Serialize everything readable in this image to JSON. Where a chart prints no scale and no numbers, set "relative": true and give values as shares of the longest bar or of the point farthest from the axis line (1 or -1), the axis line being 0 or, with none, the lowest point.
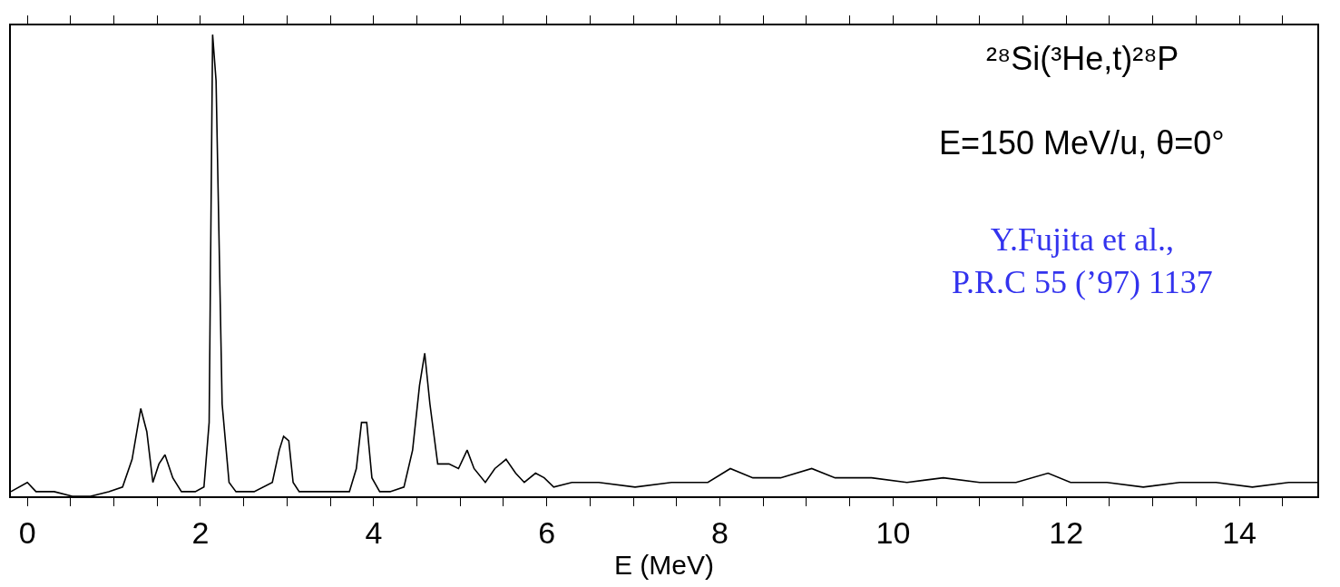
{
  "chart_data": {
    "type": "line",
    "relative": true,
    "xlabel": "E (MeV)",
    "annotations": [
      "²⁸Si(³He,t)²⁸P",
      "E=150 MeV/u, θ=0°",
      "Y.Fujita et al.,\nP.R.C 55 (’97) 1137"
    ],
    "xlim": [
      -0.19,
      14.9
    ],
    "xticks": [
      0,
      {
        "value": 0.5,
        "label": null
      },
      {
        "value": 1,
        "label": null
      },
      {
        "value": 1.5,
        "label": null
      },
      2,
      {
        "value": 2.5,
        "label": null
      },
      {
        "value": 3,
        "label": null
      },
      {
        "value": 3.5,
        "label": null
      },
      4,
      {
        "value": 4.5,
        "label": null
      },
      {
        "value": 5,
        "label": null
      },
      {
        "value": 5.5,
        "label": null
      },
      6,
      {
        "value": 6.5,
        "label": null
      },
      {
        "value": 7,
        "label": null
      },
      {
        "value": 7.5,
        "label": null
      },
      8,
      {
        "value": 8.5,
        "label": null
      },
      {
        "value": 9,
        "label": null
      },
      {
        "value": 9.5,
        "label": null
      },
      10,
      {
        "value": 10.5,
        "label": null
      },
      {
        "value": 11,
        "label": null
      },
      {
        "value": 11.5,
        "label": null
      },
      12,
      {
        "value": 12.5,
        "label": null
      },
      {
        "value": 13,
        "label": null
      },
      {
        "value": 13.5,
        "label": null
      },
      14,
      {
        "value": 14.5,
        "label": null
      }
    ],
    "marker": "none",
    "line_style": "solid",
    "series": [
      {
        "color": "#000000",
        "x": [
          -0.19,
          0,
          0.1,
          0.31,
          0.52,
          0.73,
          0.94,
          1.1,
          1.21,
          1.31,
          1.38,
          1.45,
          1.52,
          1.59,
          1.68,
          1.78,
          1.94,
          2.04,
          2.1,
          2.14,
          2.18,
          2.25,
          2.33,
          2.41,
          2.62,
          2.83,
          2.91,
          2.96,
          3.02,
          3.07,
          3.14,
          3.35,
          3.56,
          3.72,
          3.8,
          3.86,
          3.92,
          3.98,
          4.07,
          4.19,
          4.35,
          4.45,
          4.53,
          4.59,
          4.65,
          4.74,
          4.87,
          4.98,
          5.08,
          5.16,
          5.29,
          5.4,
          5.53,
          5.64,
          5.74,
          5.87,
          5.97,
          6.08,
          6.29,
          6.6,
          7.02,
          7.44,
          7.86,
          8.12,
          8.38,
          8.7,
          9.06,
          9.33,
          9.75,
          10.16,
          10.58,
          11.0,
          11.42,
          11.79,
          12.05,
          12.47,
          12.89,
          13.31,
          13.73,
          14.15,
          14.57,
          14.9
        ],
        "values": [
          0.01,
          0.03,
          0.01,
          0.01,
          0.0,
          0.0,
          0.01,
          0.02,
          0.08,
          0.19,
          0.14,
          0.03,
          0.07,
          0.09,
          0.04,
          0.01,
          0.01,
          0.02,
          0.16,
          1,
          0.9,
          0.2,
          0.03,
          0.01,
          0.01,
          0.03,
          0.1,
          0.13,
          0.12,
          0.03,
          0.01,
          0.01,
          0.01,
          0.01,
          0.06,
          0.16,
          0.16,
          0.04,
          0.01,
          0.01,
          0.02,
          0.1,
          0.24,
          0.31,
          0.2,
          0.07,
          0.07,
          0.06,
          0.1,
          0.06,
          0.03,
          0.06,
          0.08,
          0.05,
          0.03,
          0.05,
          0.04,
          0.02,
          0.03,
          0.03,
          0.02,
          0.03,
          0.03,
          0.06,
          0.04,
          0.04,
          0.06,
          0.04,
          0.04,
          0.03,
          0.04,
          0.03,
          0.03,
          0.05,
          0.03,
          0.03,
          0.02,
          0.03,
          0.03,
          0.02,
          0.03,
          0.03
        ]
      }
    ]
  }
}
